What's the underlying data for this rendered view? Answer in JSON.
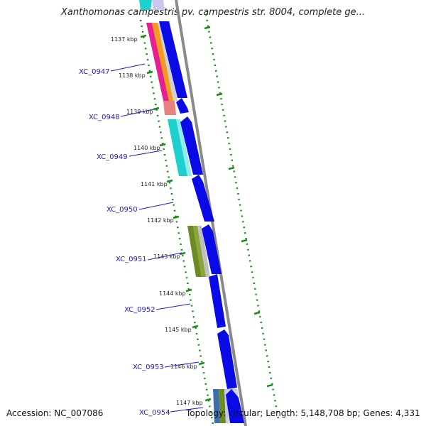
{
  "title": "Xanthomonas campestris pv. campestris str. 8004, complete ge...",
  "footer": {
    "accession": "Accession: NC_007086",
    "summary": "Topology: circular; Length: 5,148,708 bp; Genes: 4,331"
  },
  "kbp_ticks": [
    "1137 kbp",
    "1138 kbp",
    "1139 kbp",
    "1140 kbp",
    "1141 kbp",
    "1142 kbp",
    "1143 kbp",
    "1144 kbp",
    "1145 kbp",
    "1146 kbp",
    "1147 kbp"
  ],
  "genes": [
    "XC_0947",
    "XC_0948",
    "XC_0949",
    "XC_0950",
    "XC_0951",
    "XC_0952",
    "XC_0953",
    "XC_0954"
  ],
  "colors": {
    "cds": "#0a0ae6",
    "backbone": "#8a8a8a",
    "tick": "#1a8a1a",
    "label": "#1a1acc",
    "magenta": "#e6208c",
    "orange": "#f59a1e",
    "salmon": "#e88080",
    "cyan": "#1ecfd0",
    "olive": "#6e8a22",
    "grey": "#b8b8b8"
  }
}
